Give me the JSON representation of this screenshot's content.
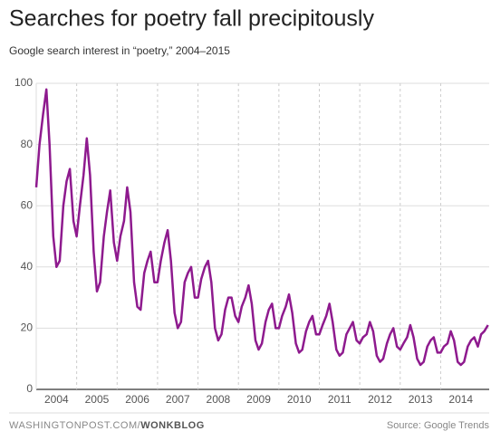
{
  "chart_data": {
    "type": "line",
    "title": "Searches for poetry fall precipitously",
    "subtitle": "Google search interest in “poetry,” 2004–2015",
    "footer_site": "WASHINGTONPOST.COM/",
    "footer_blog": "WONKBLOG",
    "source": "Source: Google Trends",
    "color": "#8e1a8e",
    "grid": true,
    "xlim": [
      2004,
      2015.2
    ],
    "ylim": [
      0,
      100
    ],
    "xticks": [
      2004,
      2005,
      2006,
      2007,
      2008,
      2009,
      2010,
      2011,
      2012,
      2013,
      2014
    ],
    "yticks": [
      0,
      20,
      40,
      60,
      80,
      100
    ],
    "x": [
      2004,
      2004.08,
      2004.17,
      2004.25,
      2004.33,
      2004.42,
      2004.5,
      2004.58,
      2004.67,
      2004.75,
      2004.83,
      2004.92,
      2005,
      2005.08,
      2005.17,
      2005.25,
      2005.33,
      2005.42,
      2005.5,
      2005.58,
      2005.67,
      2005.75,
      2005.83,
      2005.92,
      2006,
      2006.08,
      2006.17,
      2006.25,
      2006.33,
      2006.42,
      2006.5,
      2006.58,
      2006.67,
      2006.75,
      2006.83,
      2006.92,
      2007,
      2007.08,
      2007.17,
      2007.25,
      2007.33,
      2007.42,
      2007.5,
      2007.58,
      2007.67,
      2007.75,
      2007.83,
      2007.92,
      2008,
      2008.08,
      2008.17,
      2008.25,
      2008.33,
      2008.42,
      2008.5,
      2008.58,
      2008.67,
      2008.75,
      2008.83,
      2008.92,
      2009,
      2009.08,
      2009.17,
      2009.25,
      2009.33,
      2009.42,
      2009.5,
      2009.58,
      2009.67,
      2009.75,
      2009.83,
      2009.92,
      2010,
      2010.08,
      2010.17,
      2010.25,
      2010.33,
      2010.42,
      2010.5,
      2010.58,
      2010.67,
      2010.75,
      2010.83,
      2010.92,
      2011,
      2011.08,
      2011.17,
      2011.25,
      2011.33,
      2011.42,
      2011.5,
      2011.58,
      2011.67,
      2011.75,
      2011.83,
      2011.92,
      2012,
      2012.08,
      2012.17,
      2012.25,
      2012.33,
      2012.42,
      2012.5,
      2012.58,
      2012.67,
      2012.75,
      2012.83,
      2012.92,
      2013,
      2013.08,
      2013.17,
      2013.25,
      2013.33,
      2013.42,
      2013.5,
      2013.58,
      2013.67,
      2013.75,
      2013.83,
      2013.92,
      2014,
      2014.08,
      2014.17,
      2014.25,
      2014.33,
      2014.42,
      2014.5,
      2014.58,
      2014.67,
      2014.75,
      2014.83,
      2014.92,
      2015,
      2015.08,
      2015.17
    ],
    "series": [
      {
        "values": [
          66,
          80,
          90,
          98,
          80,
          50,
          40,
          42,
          60,
          68,
          72,
          55,
          50,
          60,
          70,
          82,
          70,
          45,
          32,
          35,
          50,
          58,
          65,
          48,
          42,
          50,
          55,
          66,
          58,
          35,
          27,
          26,
          38,
          42,
          45,
          35,
          35,
          42,
          48,
          52,
          42,
          25,
          20,
          22,
          35,
          38,
          40,
          30,
          30,
          36,
          40,
          42,
          35,
          20,
          16,
          18,
          26,
          30,
          30,
          24,
          22,
          27,
          30,
          34,
          28,
          16,
          13,
          15,
          22,
          26,
          28,
          20,
          20,
          24,
          27,
          31,
          25,
          15,
          12,
          13,
          19,
          22,
          24,
          18,
          18,
          21,
          24,
          28,
          22,
          13,
          11,
          12,
          18,
          20,
          22,
          16,
          15,
          17,
          18,
          22,
          19,
          11,
          9,
          10,
          15,
          18,
          20,
          14,
          13,
          15,
          17,
          21,
          17,
          10,
          8,
          9,
          14,
          16,
          17,
          12,
          12,
          14,
          15,
          19,
          16,
          9,
          8,
          9,
          14,
          16,
          17,
          14,
          18,
          19,
          21
        ]
      }
    ]
  }
}
